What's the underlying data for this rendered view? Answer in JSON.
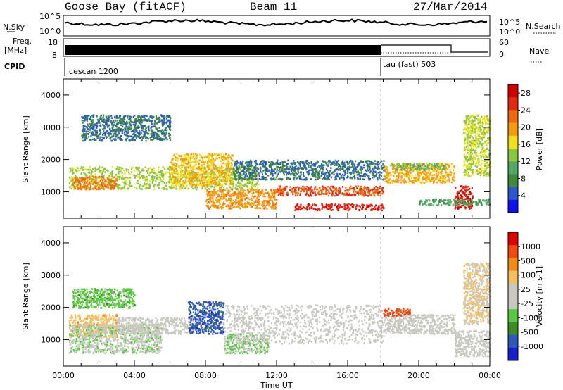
{
  "header": {
    "station": "Goose Bay (fitACF)",
    "beam": "Beam 11",
    "date": "27/Mar/2014"
  },
  "top_panels": {
    "left_labels": {
      "nsky": "N.Sky",
      "freq_a": "Freq.",
      "freq_b": "[MHz]",
      "cpid": "CPID"
    },
    "right_labels": {
      "nsearch": "N.Search",
      "nave": "Nave"
    },
    "nsky_ticks": [
      "10^5",
      "10^0"
    ],
    "nsearch_ticks": [
      "10^5",
      "10^0"
    ],
    "freq_ticks": [
      "18",
      "8"
    ],
    "nave_ticks": [
      "60",
      "0"
    ],
    "cpid_segments": [
      {
        "label": "icescan 1200",
        "start_hour": 0,
        "end_hour": 18
      },
      {
        "label": "tau (fast) 503",
        "start_hour": 18,
        "end_hour": 24
      }
    ]
  },
  "colors": {
    "power": [
      "#1010ee",
      "#2d58c8",
      "#3f8a3c",
      "#55a868",
      "#8cc63e",
      "#f2e020",
      "#f29b12",
      "#ee6a12",
      "#e02a14",
      "#d00000"
    ],
    "velocity": [
      "#e00000",
      "#ee4a12",
      "#f08a1a",
      "#f6c060",
      "#c8c8c0",
      "#c8c8c0",
      "#58c840",
      "#3c8a28",
      "#3058b8",
      "#1420c8"
    ]
  },
  "chart_data": [
    {
      "type": "heatmap",
      "title": "Power",
      "xlabel": "Time UT",
      "ylabel": "Slant Range [km]",
      "x_ticks": [
        "00:00",
        "04:00",
        "08:00",
        "12:00",
        "16:00",
        "20:00",
        "00:00"
      ],
      "x_range_hours": [
        0,
        24
      ],
      "y_ticks": [
        "1000",
        "2000",
        "3000",
        "4000"
      ],
      "y_range_km": [
        180,
        4500
      ],
      "colorbar": {
        "label": "Power [dB]",
        "ticks": [
          "4",
          "8",
          "12",
          "16",
          "20",
          "24",
          "28"
        ],
        "range": [
          0,
          30
        ]
      },
      "features": [
        {
          "t0": 0.3,
          "t1": 11.0,
          "r0": 1100,
          "r1": 1800,
          "value": 14
        },
        {
          "t0": 0.5,
          "t1": 3.0,
          "r0": 1100,
          "r1": 1500,
          "value": 22
        },
        {
          "t0": 6.0,
          "t1": 9.5,
          "r0": 1200,
          "r1": 2200,
          "value": 18
        },
        {
          "t0": 8.0,
          "t1": 12.0,
          "r0": 500,
          "r1": 1100,
          "value": 20
        },
        {
          "t0": 12.0,
          "t1": 18.0,
          "r0": 900,
          "r1": 1200,
          "value": 24
        },
        {
          "t0": 13.0,
          "t1": 18.0,
          "r0": 450,
          "r1": 650,
          "value": 26
        },
        {
          "t0": 18.0,
          "t1": 22.0,
          "r0": 1300,
          "r1": 1900,
          "value": 19
        },
        {
          "t0": 18.5,
          "t1": 21.5,
          "r0": 1700,
          "r1": 1900,
          "value": 12
        },
        {
          "t0": 22.0,
          "t1": 23.0,
          "r0": 500,
          "r1": 1200,
          "value": 27
        },
        {
          "t0": 20.0,
          "t1": 24.0,
          "r0": 600,
          "r1": 800,
          "value": 10
        },
        {
          "t0": 1.0,
          "t1": 6.0,
          "r0": 2600,
          "r1": 3400,
          "value": 6
        },
        {
          "t0": 9.5,
          "t1": 18.0,
          "r0": 1400,
          "r1": 2000,
          "value": 6
        },
        {
          "t0": 22.5,
          "t1": 24.0,
          "r0": 1500,
          "r1": 3400,
          "value": 15
        }
      ]
    },
    {
      "type": "heatmap",
      "title": "Velocity",
      "xlabel": "Time UT",
      "ylabel": "Slant Range [km]",
      "x_ticks": [
        "00:00",
        "04:00",
        "08:00",
        "12:00",
        "16:00",
        "20:00",
        "00:00"
      ],
      "x_range_hours": [
        0,
        24
      ],
      "y_ticks": [
        "1000",
        "2000",
        "3000",
        "4000"
      ],
      "y_range_km": [
        180,
        4500
      ],
      "colorbar": {
        "label": "Velocity [m s-1]",
        "ticks": [
          "1000",
          "500",
          "100",
          "25",
          "-25",
          "-100",
          "-500",
          "-1000"
        ],
        "range": [
          -1000,
          1000
        ]
      },
      "features": [
        {
          "t0": 0.3,
          "t1": 3.0,
          "r0": 1100,
          "r1": 1800,
          "value": 300
        },
        {
          "t0": 0.3,
          "t1": 5.5,
          "r0": 600,
          "r1": 1500,
          "value": -150
        },
        {
          "t0": 3.0,
          "t1": 7.5,
          "r0": 1200,
          "r1": 1700,
          "value": 0
        },
        {
          "t0": 7.0,
          "t1": 9.0,
          "r0": 1200,
          "r1": 2200,
          "value": -700
        },
        {
          "t0": 9.0,
          "t1": 11.5,
          "r0": 600,
          "r1": 1200,
          "value": -200
        },
        {
          "t0": 9.0,
          "t1": 18.0,
          "r0": 900,
          "r1": 2100,
          "value": 0
        },
        {
          "t0": 18.0,
          "t1": 22.0,
          "r0": 1200,
          "r1": 1800,
          "value": 0
        },
        {
          "t0": 18.0,
          "t1": 19.5,
          "r0": 1750,
          "r1": 2000,
          "value": 700
        },
        {
          "t0": 22.0,
          "t1": 24.0,
          "r0": 500,
          "r1": 1300,
          "value": 0
        },
        {
          "t0": 0.5,
          "t1": 4.0,
          "r0": 2000,
          "r1": 2600,
          "value": -300
        },
        {
          "t0": 22.5,
          "t1": 24.0,
          "r0": 1500,
          "r1": 3400,
          "value": 200
        }
      ]
    }
  ]
}
